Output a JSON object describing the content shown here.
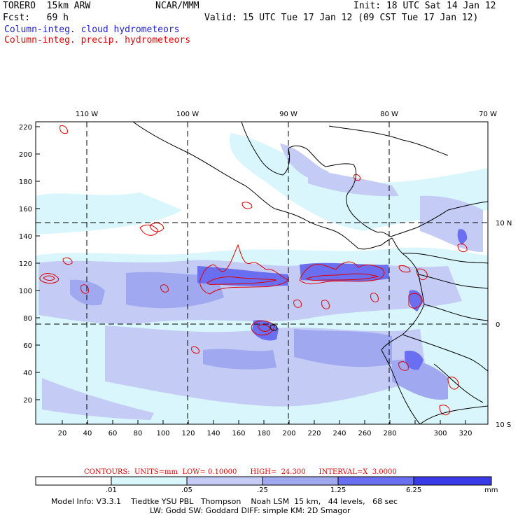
{
  "header": {
    "model": "TORERO  15km ARW",
    "center": "NCAR/MMM",
    "init": "Init: 18 UTC Sat 14 Jan 12",
    "fcst": "Fcst:   69 h",
    "valid": "Valid: 15 UTC Tue 17 Jan 12 (09 CST Tue 17 Jan 12)",
    "field_cloud": "Column-integ. cloud hydrometeors",
    "field_precip": "Column-integ. precip. hydrometeors"
  },
  "colors": {
    "cloud_text": "#2020d0",
    "precip_text": "#e00000",
    "shade_1": "#d8f6fb",
    "shade_2": "#c4ccf6",
    "shade_3": "#a0a8f0",
    "shade_4": "#6a6ef0",
    "shade_5": "#3a3ae8",
    "shade_6": "#1414e0",
    "contour": "#e00000"
  },
  "axes": {
    "top_lon_labels": [
      "110 W",
      "100 W",
      "90 W",
      "80 W",
      "70 W"
    ],
    "right_lat_labels": [
      "10 N",
      "0",
      "10 S"
    ],
    "left_y_ticks": [
      "220",
      "200",
      "180",
      "160",
      "140",
      "120",
      "100",
      "80",
      "60",
      "40",
      "20"
    ],
    "bottom_x_ticks": [
      "20",
      "40",
      "60",
      "80",
      "100",
      "120",
      "140",
      "160",
      "180",
      "200",
      "220",
      "240",
      "260",
      "280",
      "300",
      "320"
    ]
  },
  "contours_info": "CONTOURS:  UNITS=mm  LOW= 0.10000      HIGH=  24.300      INTERVAL=X  3.0000",
  "colorbar": {
    "labels": [
      ".01",
      ".05",
      ".25",
      "1.25",
      "6.25"
    ],
    "unit": "mm"
  },
  "footer": {
    "line1": "Model Info: V3.3.1    Tiedtke YSU PBL   Thompson    Noah LSM  15 km,   44 levels,   68 sec",
    "line2": "LW: Godd SW: Goddard DIFF: simple KM: 2D Smagor"
  }
}
